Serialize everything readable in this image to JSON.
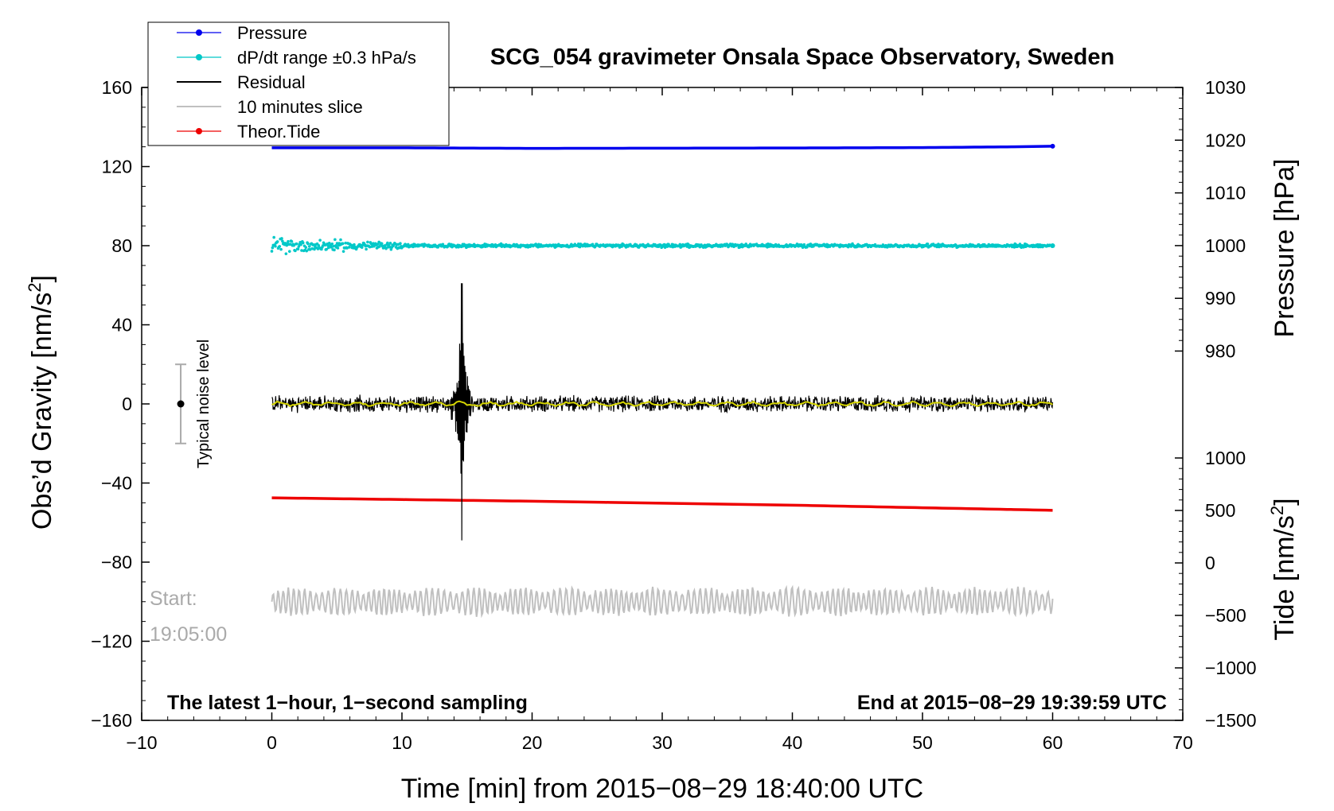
{
  "chart_data": {
    "type": "line",
    "title": "SCG_054 gravimeter Onsala Space Observatory, Sweden",
    "xlabel": "Time [min] from 2015−08−29 18:40:00 UTC",
    "ylabel": "Obs’d Gravity [nm/s",
    "ylabel_sup": "2",
    "ylabel_end": "]",
    "y2label": "Pressure [hPa]",
    "y3label": "Tide [nm/s",
    "y3label_sup": "2",
    "y3label_end": "]",
    "xlim": [
      -10,
      70
    ],
    "ylim": [
      -160,
      160
    ],
    "pressure_axis_range": [
      980,
      1030
    ],
    "tide_axis_range": [
      -1500,
      1000
    ],
    "x_ticks": [
      "−10",
      "0",
      "10",
      "20",
      "30",
      "40",
      "50",
      "60",
      "70"
    ],
    "y_ticks": [
      "160",
      "120",
      "80",
      "40",
      "0",
      "−40",
      "−80",
      "−120",
      "−160"
    ],
    "pressure_ticks": [
      "1030",
      "1020",
      "1010",
      "1000",
      "990",
      "980"
    ],
    "tide_ticks": [
      "1000",
      "500",
      "0",
      "−500",
      "−1000",
      "−1500"
    ],
    "legend": {
      "placement": "top-left",
      "entries": [
        {
          "label": "Pressure",
          "color": "#0000ee",
          "marker": true
        },
        {
          "label": "dP/dt range ±0.3 hPa/s",
          "color": "#00c8c8",
          "marker": true
        },
        {
          "label": "Residual",
          "color": "#000000",
          "marker": false
        },
        {
          "label": "10 minutes slice",
          "color": "#c0c0c0",
          "marker": false
        },
        {
          "label": "Theor.Tide",
          "color": "#ee0000",
          "marker": true
        }
      ]
    },
    "series": [
      {
        "name": "Pressure",
        "color": "#0000ee",
        "x": [
          0,
          10,
          20,
          30,
          40,
          50,
          57,
          60
        ],
        "y": [
          129.5,
          129.5,
          129.2,
          129.3,
          129.4,
          129.6,
          130.0,
          130.3
        ]
      },
      {
        "name": "dP/dt",
        "color": "#00c8c8",
        "x": [
          0,
          60
        ],
        "y": [
          80,
          80
        ],
        "scatter_amplitude": [
          4,
          1
        ]
      },
      {
        "name": "Residual",
        "color": "#000000",
        "x": [
          0,
          60
        ],
        "y": [
          0,
          0
        ],
        "noise_amplitude": 4,
        "spike_at_min": 14.6,
        "spike_range": [
          -69,
          61
        ]
      },
      {
        "name": "10 minutes slice",
        "color": "#c0c0c0",
        "x": [
          0,
          60
        ],
        "y": [
          -100,
          -100
        ],
        "oscillation_amplitude": 6
      },
      {
        "name": "Theor.Tide",
        "color": "#ee0000",
        "x": [
          0,
          20,
          40,
          60
        ],
        "y": [
          -47.5,
          -49.2,
          -51.2,
          -53.8
        ]
      }
    ],
    "noise_marker": {
      "label": "Typical noise level",
      "x": -7,
      "y": 0,
      "range": [
        -20,
        20
      ]
    },
    "annotations": {
      "start_label": "Start:",
      "start_time": "19:05:00",
      "bottom_left": "The latest 1−hour, 1−second sampling",
      "bottom_right": "End at 2015−08−29 19:39:59 UTC"
    }
  }
}
